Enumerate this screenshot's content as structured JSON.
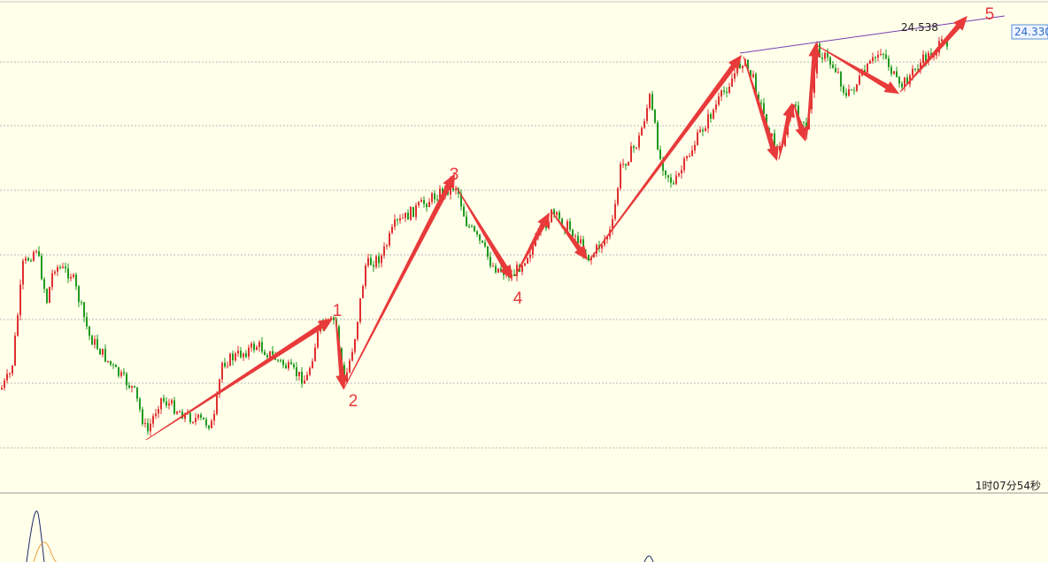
{
  "waves": [
    "1",
    "2",
    "3",
    "4",
    "5"
  ],
  "price_line_label": "24.538",
  "price_tag": "24.330",
  "timer": "1时07分54秒"
}
